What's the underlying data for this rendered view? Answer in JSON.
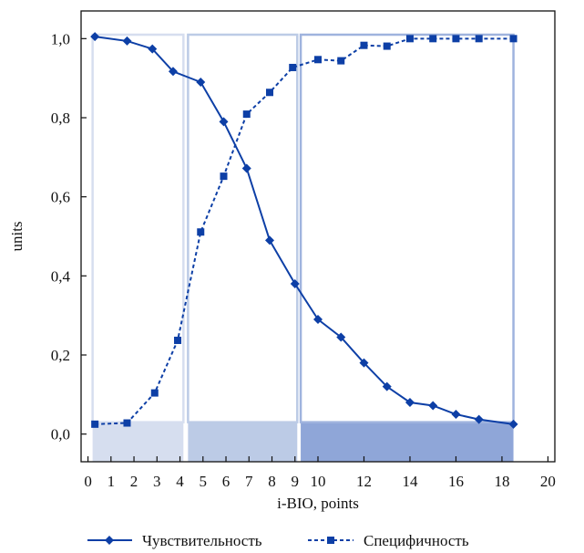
{
  "chart_data": {
    "type": "line",
    "title": "",
    "xlabel": "i-BIO, points",
    "ylabel": "units",
    "xlim": [
      -0.3,
      20.3
    ],
    "ylim": [
      -0.07,
      1.07
    ],
    "x_tick_labels": [
      "0",
      "1",
      "2",
      "3",
      "4",
      "5",
      "6",
      "7",
      "8",
      "9",
      "10",
      "12",
      "14",
      "16",
      "18",
      "20"
    ],
    "x_tick_values": [
      0,
      1,
      2,
      3,
      4,
      5,
      6,
      7,
      8,
      9,
      10,
      12,
      14,
      16,
      18,
      20
    ],
    "y_ticks": [
      0.0,
      0.2,
      0.4,
      0.6,
      0.8,
      1.0
    ],
    "y_tick_labels": [
      "0,0",
      "0,2",
      "0,4",
      "0,6",
      "0,8",
      "1,0"
    ],
    "grid": false,
    "legend_position": "bottom",
    "zones": [
      {
        "from": 0.2,
        "to": 4.15,
        "color": "#d6deef",
        "outline": "#d6deef"
      },
      {
        "from": 4.35,
        "to": 9.1,
        "color": "#bccbe6",
        "outline": "#bccbe6"
      },
      {
        "from": 9.25,
        "to": 18.5,
        "color": "#8fa6d8",
        "outline": "#9fb3de"
      }
    ],
    "series": [
      {
        "name": "Чувствительность",
        "color": "#0d3fa6",
        "line_style": "solid",
        "marker": "diamond",
        "x": [
          0.3,
          1.7,
          2.8,
          3.7,
          4.9,
          5.9,
          6.9,
          7.9,
          9.0,
          10.0,
          11.0,
          12.0,
          13.0,
          14.0,
          15.0,
          16.0,
          17.0,
          18.5
        ],
        "y": [
          1.005,
          0.994,
          0.974,
          0.917,
          0.89,
          0.79,
          0.672,
          0.49,
          0.38,
          0.29,
          0.245,
          0.18,
          0.12,
          0.08,
          0.072,
          0.05,
          0.037,
          0.025
        ]
      },
      {
        "name": "Специфичность",
        "color": "#0d3fa6",
        "line_style": "dashed",
        "marker": "square",
        "x": [
          0.3,
          1.7,
          2.9,
          3.9,
          4.9,
          5.9,
          6.9,
          7.9,
          8.9,
          10.0,
          11.0,
          12.0,
          13.0,
          14.0,
          15.0,
          16.0,
          17.0,
          18.5
        ],
        "y": [
          0.025,
          0.028,
          0.104,
          0.237,
          0.511,
          0.652,
          0.809,
          0.864,
          0.927,
          0.947,
          0.944,
          0.983,
          0.981,
          1.0,
          1.0,
          1.0,
          1.0,
          1.0
        ]
      }
    ]
  }
}
